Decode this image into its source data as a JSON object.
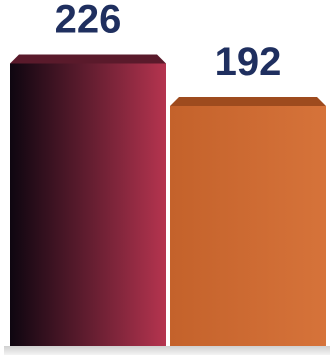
{
  "chart_data": {
    "type": "bar",
    "categories": [
      "",
      ""
    ],
    "values": [
      226,
      192
    ],
    "title": "",
    "xlabel": "",
    "ylabel": "",
    "ylim": [
      0,
      260
    ],
    "grid": false,
    "legend": "none",
    "colors": {
      "bar_1_dark": "#0e0610",
      "bar_1_light": "#b5344f",
      "bar_1_top": "#5a1a2b",
      "bar_2_main": "#cf6a2f",
      "bar_2_top": "#9e4b1e",
      "value_label": "#1f2f5f"
    }
  }
}
